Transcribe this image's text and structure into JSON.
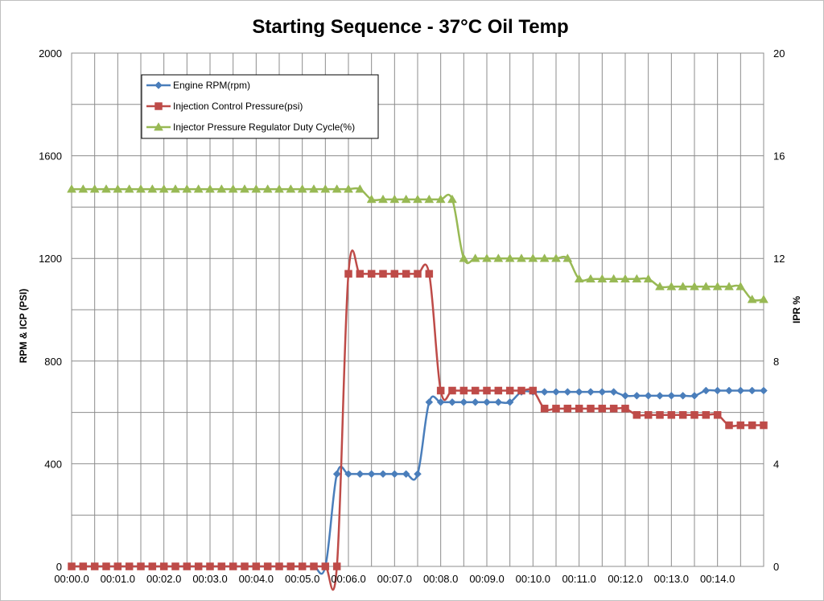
{
  "chart_data": {
    "type": "line",
    "title": "Starting Sequence - 37°C Oil Temp",
    "ylabel": "RPM & ICP (PSI)",
    "y2label": "IPR %",
    "ylim": [
      0,
      2000
    ],
    "y2lim": [
      0,
      20
    ],
    "y_ticks": [
      "0",
      "400",
      "800",
      "1200",
      "1600",
      "2000"
    ],
    "y2_ticks": [
      "0",
      "4",
      "8",
      "12",
      "16",
      "20"
    ],
    "x_ticks": [
      "00:00.0",
      "00:01.0",
      "00:02.0",
      "00:03.0",
      "00:04.0",
      "00:05.0",
      "00:06.0",
      "00:07.0",
      "00:08.0",
      "00:09.0",
      "00:10.0",
      "00:11.0",
      "00:12.0",
      "00:13.0",
      "00:14.0"
    ],
    "x_range_seconds": [
      0,
      15
    ],
    "grid": true,
    "legend_position": "top-left",
    "series": [
      {
        "name": "Engine RPM(rpm)",
        "axis": "left",
        "color": "#4a7ebb",
        "marker": "diamond",
        "x": [
          0,
          0.25,
          0.5,
          0.75,
          1,
          1.25,
          1.5,
          1.75,
          2,
          2.25,
          2.5,
          2.75,
          3,
          3.25,
          3.5,
          3.75,
          4,
          4.25,
          4.5,
          4.75,
          5,
          5.25,
          5.5,
          5.75,
          6,
          6.25,
          6.5,
          6.75,
          7,
          7.25,
          7.5,
          7.75,
          8,
          8.25,
          8.5,
          8.75,
          9,
          9.25,
          9.5,
          9.75,
          10,
          10.25,
          10.5,
          10.75,
          11,
          11.25,
          11.5,
          11.75,
          12,
          12.25,
          12.5,
          12.75,
          13,
          13.25,
          13.5,
          13.75,
          14,
          14.25,
          14.5,
          14.75,
          15
        ],
        "values": [
          0,
          0,
          0,
          0,
          0,
          0,
          0,
          0,
          0,
          0,
          0,
          0,
          0,
          0,
          0,
          0,
          0,
          0,
          0,
          0,
          0,
          0,
          0,
          360,
          360,
          360,
          360,
          360,
          360,
          360,
          360,
          640,
          640,
          640,
          640,
          640,
          640,
          640,
          640,
          680,
          680,
          680,
          680,
          680,
          680,
          680,
          680,
          680,
          665,
          665,
          665,
          665,
          665,
          665,
          665,
          685,
          685,
          685,
          685,
          685,
          685
        ]
      },
      {
        "name": "Injection Control Pressure(psi)",
        "axis": "left",
        "color": "#be4b48",
        "marker": "square",
        "x": [
          0,
          0.25,
          0.5,
          0.75,
          1,
          1.25,
          1.5,
          1.75,
          2,
          2.25,
          2.5,
          2.75,
          3,
          3.25,
          3.5,
          3.75,
          4,
          4.25,
          4.5,
          4.75,
          5,
          5.25,
          5.5,
          5.75,
          6,
          6.25,
          6.5,
          6.75,
          7,
          7.25,
          7.5,
          7.75,
          8,
          8.25,
          8.5,
          8.75,
          9,
          9.25,
          9.5,
          9.75,
          10,
          10.25,
          10.5,
          10.75,
          11,
          11.25,
          11.5,
          11.75,
          12,
          12.25,
          12.5,
          12.75,
          13,
          13.25,
          13.5,
          13.75,
          14,
          14.25,
          14.5,
          14.75,
          15
        ],
        "values": [
          0,
          0,
          0,
          0,
          0,
          0,
          0,
          0,
          0,
          0,
          0,
          0,
          0,
          0,
          0,
          0,
          0,
          0,
          0,
          0,
          0,
          0,
          0,
          0,
          1140,
          1140,
          1140,
          1140,
          1140,
          1140,
          1140,
          1140,
          685,
          685,
          685,
          685,
          685,
          685,
          685,
          685,
          685,
          615,
          615,
          615,
          615,
          615,
          615,
          615,
          615,
          590,
          590,
          590,
          590,
          590,
          590,
          590,
          590,
          550,
          550,
          550,
          550
        ]
      },
      {
        "name": "Injector Pressure Regulator Duty Cycle(%)",
        "axis": "right",
        "color": "#98b954",
        "marker": "triangle",
        "x": [
          0,
          0.25,
          0.5,
          0.75,
          1,
          1.25,
          1.5,
          1.75,
          2,
          2.25,
          2.5,
          2.75,
          3,
          3.25,
          3.5,
          3.75,
          4,
          4.25,
          4.5,
          4.75,
          5,
          5.25,
          5.5,
          5.75,
          6,
          6.25,
          6.5,
          6.75,
          7,
          7.25,
          7.5,
          7.75,
          8,
          8.25,
          8.5,
          8.75,
          9,
          9.25,
          9.5,
          9.75,
          10,
          10.25,
          10.5,
          10.75,
          11,
          11.25,
          11.5,
          11.75,
          12,
          12.25,
          12.5,
          12.75,
          13,
          13.25,
          13.5,
          13.75,
          14,
          14.25,
          14.5,
          14.75,
          15
        ],
        "values": [
          14.7,
          14.7,
          14.7,
          14.7,
          14.7,
          14.7,
          14.7,
          14.7,
          14.7,
          14.7,
          14.7,
          14.7,
          14.7,
          14.7,
          14.7,
          14.7,
          14.7,
          14.7,
          14.7,
          14.7,
          14.7,
          14.7,
          14.7,
          14.7,
          14.7,
          14.7,
          14.3,
          14.3,
          14.3,
          14.3,
          14.3,
          14.3,
          14.3,
          14.3,
          12.0,
          12.0,
          12.0,
          12.0,
          12.0,
          12.0,
          12.0,
          12.0,
          12.0,
          12.0,
          11.2,
          11.2,
          11.2,
          11.2,
          11.2,
          11.2,
          11.2,
          10.9,
          10.9,
          10.9,
          10.9,
          10.9,
          10.9,
          10.9,
          10.9,
          10.4,
          10.4
        ]
      }
    ]
  }
}
